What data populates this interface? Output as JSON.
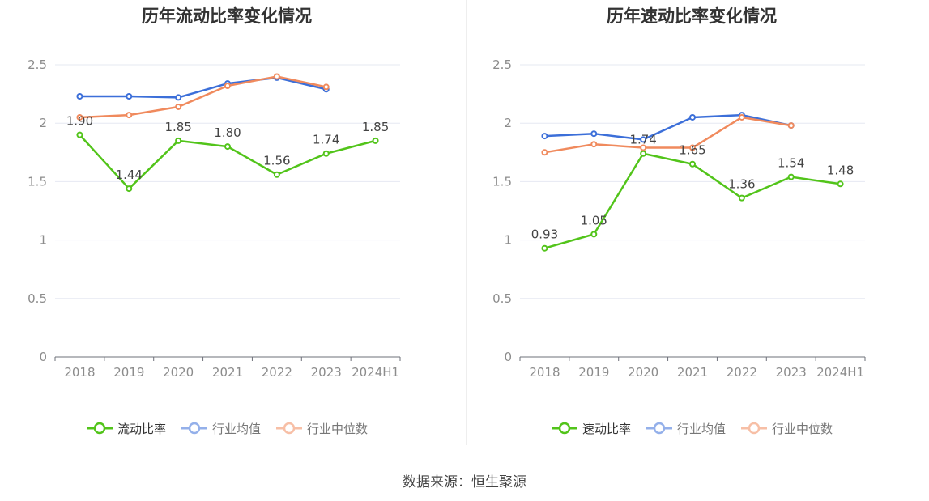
{
  "source_text": "数据来源：恒生聚源",
  "chart_data": [
    {
      "type": "line",
      "title": "历年流动比率变化情况",
      "categories": [
        "2018",
        "2019",
        "2020",
        "2021",
        "2022",
        "2023",
        "2024H1"
      ],
      "ylim": [
        0,
        2.5
      ],
      "yticks": [
        0,
        0.5,
        1,
        1.5,
        2,
        2.5
      ],
      "ytick_labels": [
        "0",
        "0.5",
        "1",
        "1.5",
        "2",
        "2.5"
      ],
      "grid": true,
      "legend_position": "bottom",
      "series": [
        {
          "name": "流动比率",
          "color": "#52c41a",
          "active": true,
          "values": [
            1.9,
            1.44,
            1.85,
            1.8,
            1.56,
            1.74,
            1.85
          ],
          "labels": [
            "1.90",
            "1.44",
            "1.85",
            "1.80",
            "1.56",
            "1.74",
            "1.85"
          ]
        },
        {
          "name": "行业均值",
          "color": "#3c6fd9",
          "active": false,
          "values": [
            2.23,
            2.23,
            2.22,
            2.34,
            2.39,
            2.29,
            null
          ]
        },
        {
          "name": "行业中位数",
          "color": "#f08a5d",
          "active": false,
          "values": [
            2.05,
            2.07,
            2.14,
            2.32,
            2.4,
            2.31,
            null
          ]
        }
      ]
    },
    {
      "type": "line",
      "title": "历年速动比率变化情况",
      "categories": [
        "2018",
        "2019",
        "2020",
        "2021",
        "2022",
        "2023",
        "2024H1"
      ],
      "ylim": [
        0,
        2.5
      ],
      "yticks": [
        0,
        0.5,
        1,
        1.5,
        2,
        2.5
      ],
      "ytick_labels": [
        "0",
        "0.5",
        "1",
        "1.5",
        "2",
        "2.5"
      ],
      "grid": true,
      "legend_position": "bottom",
      "series": [
        {
          "name": "速动比率",
          "color": "#52c41a",
          "active": true,
          "values": [
            0.93,
            1.05,
            1.74,
            1.65,
            1.36,
            1.54,
            1.48
          ],
          "labels": [
            "0.93",
            "1.05",
            "1.74",
            "1.65",
            "1.36",
            "1.54",
            "1.48"
          ]
        },
        {
          "name": "行业均值",
          "color": "#3c6fd9",
          "active": false,
          "values": [
            1.89,
            1.91,
            1.86,
            2.05,
            2.07,
            1.98,
            null
          ]
        },
        {
          "name": "行业中位数",
          "color": "#f08a5d",
          "active": false,
          "values": [
            1.75,
            1.82,
            1.79,
            1.79,
            2.05,
            1.98,
            null
          ]
        }
      ]
    }
  ]
}
